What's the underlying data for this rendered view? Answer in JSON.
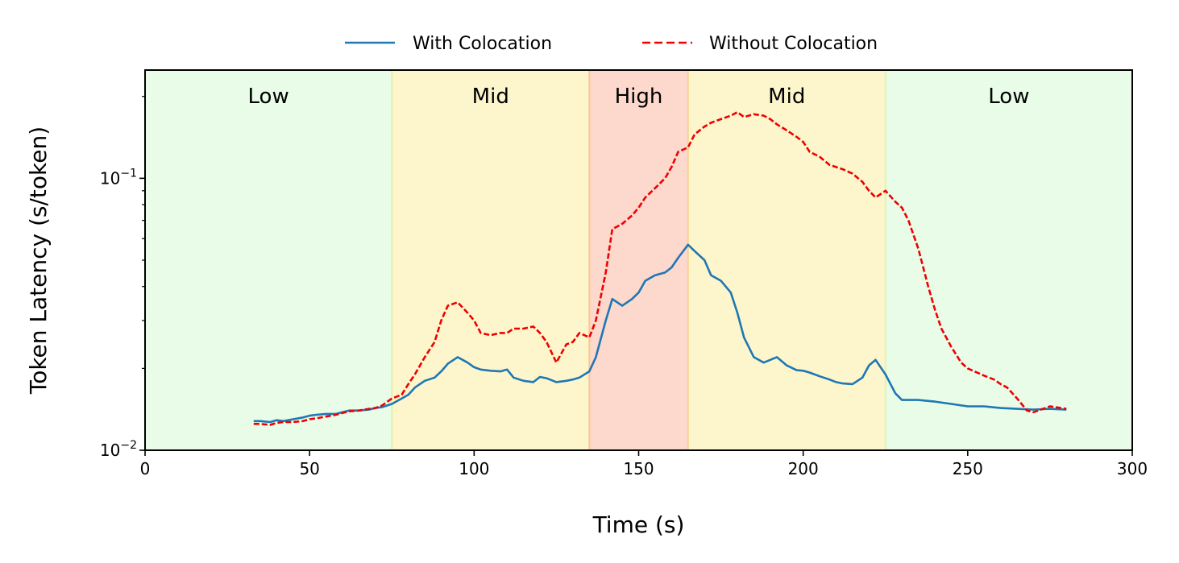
{
  "chart_data": {
    "type": "line",
    "title": "",
    "xlabel": "Time (s)",
    "ylabel": "Token Latency (s/token)",
    "xlim": [
      0,
      300
    ],
    "ylim": [
      0.01,
      0.25
    ],
    "yscale": "log",
    "grid": false,
    "legend_position": "top-center",
    "x_ticks": [
      0,
      50,
      100,
      150,
      200,
      250,
      300
    ],
    "y_ticks": [
      {
        "value": 0.01,
        "base": "10",
        "exp": "−2"
      },
      {
        "value": 0.1,
        "base": "10",
        "exp": "−1"
      }
    ],
    "regions": [
      {
        "label": "Low",
        "start": 0,
        "end": 75,
        "color": "#e8fce8"
      },
      {
        "label": "Mid",
        "start": 75,
        "end": 135,
        "color": "#fdf6cc"
      },
      {
        "label": "High",
        "start": 135,
        "end": 165,
        "color": "#fdd8cc"
      },
      {
        "label": "Mid",
        "start": 165,
        "end": 225,
        "color": "#fdf6cc"
      },
      {
        "label": "Low",
        "start": 225,
        "end": 300,
        "color": "#e8fce8"
      }
    ],
    "series": [
      {
        "name": "With Colocation",
        "color": "#1f77b4",
        "dash": "solid",
        "x": [
          33,
          35,
          38,
          40,
          42,
          45,
          48,
          50,
          52,
          55,
          58,
          60,
          62,
          65,
          68,
          70,
          72,
          75,
          78,
          80,
          82,
          85,
          88,
          90,
          92,
          95,
          98,
          100,
          102,
          105,
          108,
          110,
          112,
          115,
          118,
          120,
          122,
          125,
          128,
          130,
          132,
          135,
          137,
          140,
          142,
          145,
          148,
          150,
          152,
          155,
          158,
          160,
          162,
          165,
          167,
          170,
          172,
          175,
          178,
          180,
          182,
          185,
          188,
          190,
          192,
          195,
          198,
          200,
          202,
          205,
          208,
          210,
          212,
          215,
          218,
          220,
          222,
          225,
          228,
          230,
          235,
          240,
          245,
          250,
          255,
          260,
          265,
          270,
          275,
          280
        ],
        "y": [
          0.0128,
          0.0128,
          0.0127,
          0.0129,
          0.0128,
          0.013,
          0.0132,
          0.0134,
          0.0135,
          0.0136,
          0.0136,
          0.0138,
          0.014,
          0.014,
          0.0141,
          0.0143,
          0.0144,
          0.0148,
          0.0155,
          0.016,
          0.017,
          0.018,
          0.0185,
          0.0195,
          0.0208,
          0.022,
          0.021,
          0.0202,
          0.0198,
          0.0196,
          0.0195,
          0.0198,
          0.0185,
          0.018,
          0.0178,
          0.0186,
          0.0184,
          0.0178,
          0.018,
          0.0182,
          0.0185,
          0.0195,
          0.022,
          0.03,
          0.036,
          0.034,
          0.036,
          0.038,
          0.042,
          0.044,
          0.045,
          0.047,
          0.051,
          0.057,
          0.054,
          0.05,
          0.044,
          0.042,
          0.038,
          0.032,
          0.026,
          0.022,
          0.021,
          0.0215,
          0.022,
          0.0205,
          0.0197,
          0.0196,
          0.0193,
          0.0187,
          0.0182,
          0.0178,
          0.0176,
          0.0175,
          0.0185,
          0.0205,
          0.0215,
          0.019,
          0.0162,
          0.0153,
          0.0153,
          0.0151,
          0.0148,
          0.0145,
          0.0145,
          0.0143,
          0.0142,
          0.0141,
          0.0142,
          0.0141
        ]
      },
      {
        "name": "Without Colocation",
        "color": "#ee0000",
        "dash": "dashed",
        "x": [
          33,
          35,
          38,
          40,
          42,
          45,
          48,
          50,
          52,
          55,
          58,
          60,
          62,
          65,
          68,
          70,
          72,
          75,
          78,
          80,
          82,
          85,
          88,
          90,
          92,
          95,
          98,
          100,
          102,
          105,
          108,
          110,
          112,
          115,
          118,
          120,
          122,
          125,
          128,
          130,
          132,
          135,
          137,
          140,
          142,
          145,
          148,
          150,
          152,
          155,
          158,
          160,
          162,
          165,
          167,
          170,
          172,
          175,
          178,
          180,
          182,
          185,
          188,
          190,
          192,
          195,
          198,
          200,
          202,
          205,
          208,
          210,
          212,
          215,
          218,
          220,
          222,
          225,
          228,
          230,
          232,
          235,
          238,
          240,
          242,
          245,
          248,
          250,
          252,
          255,
          258,
          260,
          262,
          265,
          268,
          270,
          275,
          280
        ],
        "y": [
          0.0125,
          0.0125,
          0.0124,
          0.0126,
          0.0127,
          0.0127,
          0.0128,
          0.013,
          0.0131,
          0.0133,
          0.0135,
          0.0137,
          0.0139,
          0.014,
          0.0142,
          0.0143,
          0.0146,
          0.0155,
          0.016,
          0.0175,
          0.019,
          0.022,
          0.025,
          0.03,
          0.034,
          0.035,
          0.032,
          0.03,
          0.027,
          0.0265,
          0.027,
          0.027,
          0.028,
          0.028,
          0.0285,
          0.027,
          0.025,
          0.021,
          0.0245,
          0.025,
          0.027,
          0.026,
          0.03,
          0.045,
          0.065,
          0.068,
          0.073,
          0.078,
          0.085,
          0.092,
          0.1,
          0.11,
          0.125,
          0.13,
          0.145,
          0.155,
          0.16,
          0.165,
          0.17,
          0.175,
          0.168,
          0.172,
          0.17,
          0.165,
          0.158,
          0.15,
          0.142,
          0.136,
          0.125,
          0.12,
          0.112,
          0.11,
          0.108,
          0.104,
          0.097,
          0.09,
          0.085,
          0.09,
          0.082,
          0.078,
          0.07,
          0.055,
          0.04,
          0.033,
          0.028,
          0.024,
          0.021,
          0.02,
          0.0195,
          0.0188,
          0.0182,
          0.0175,
          0.017,
          0.0155,
          0.014,
          0.0138,
          0.0145,
          0.0142
        ]
      }
    ]
  }
}
